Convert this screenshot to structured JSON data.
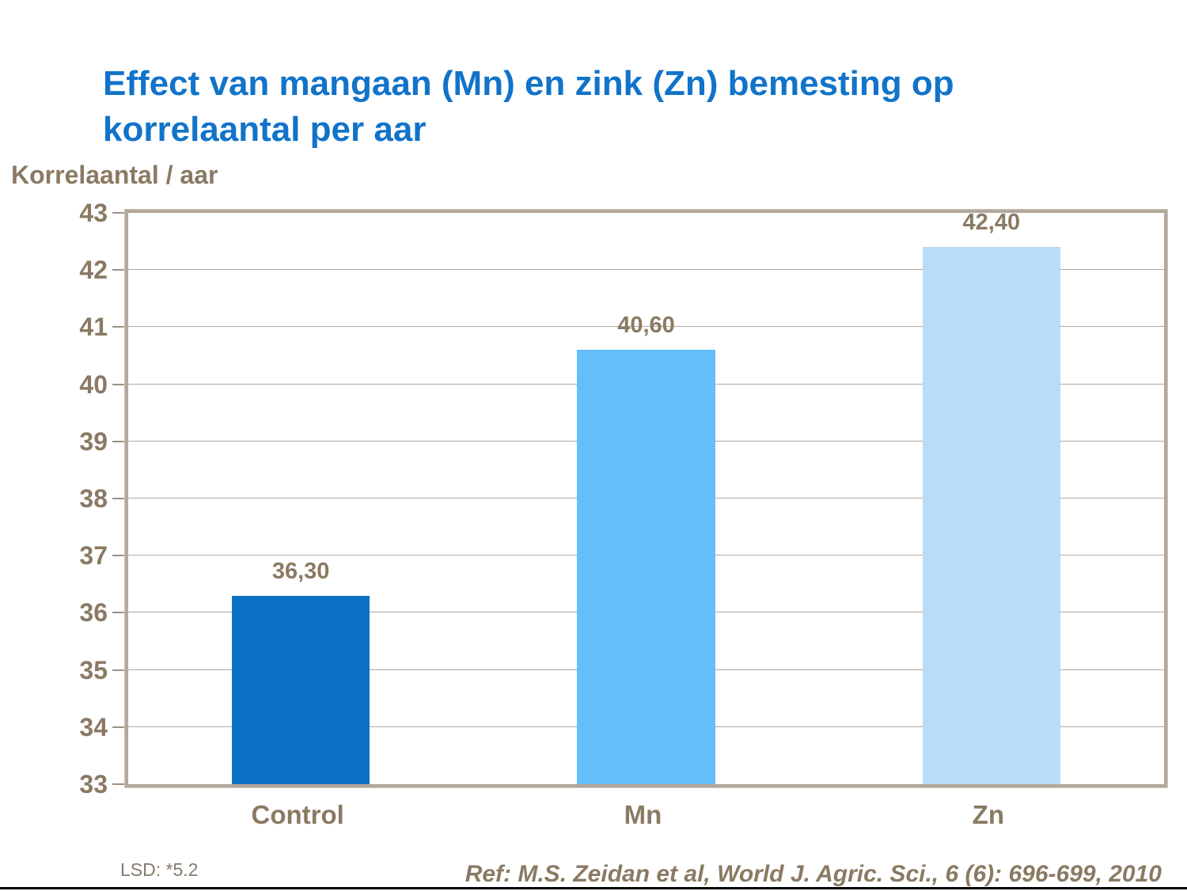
{
  "title": {
    "line1": "Effect van mangaan (Mn) en zink (Zn) bemesting op",
    "line2": "korrelaantal per aar"
  },
  "colors": {
    "title_blue": "#1173C9",
    "axis_text": "#8A7A63",
    "footer_text": "#857A6C",
    "grid": "#B2A89B",
    "frame": "#B2A89B",
    "tick": "#9A9184",
    "bottom_rule": "#000000"
  },
  "footer": {
    "lsd": "LSD: *5.2",
    "ref": "Ref: M.S. Zeidan et al, World J. Agric. Sci., 6 (6): 696-699, 2010"
  },
  "chart_data": {
    "type": "bar",
    "title": "Effect van mangaan (Mn) en zink (Zn) bemesting op korrelaantal per aar",
    "ylabel": "Korrelaantal / aar",
    "xlabel": "",
    "categories": [
      "Control",
      "Mn",
      "Zn"
    ],
    "values": [
      36.3,
      40.6,
      42.4
    ],
    "value_labels": [
      "36,30",
      "40,60",
      "42,40"
    ],
    "bar_colors": [
      "#0B72C6",
      "#63BEFA",
      "#B9DCF8"
    ],
    "ylim": [
      33,
      43
    ],
    "yticks": [
      33,
      34,
      35,
      36,
      37,
      38,
      39,
      40,
      41,
      42,
      43
    ],
    "grid": "horizontal",
    "legend": "none"
  }
}
